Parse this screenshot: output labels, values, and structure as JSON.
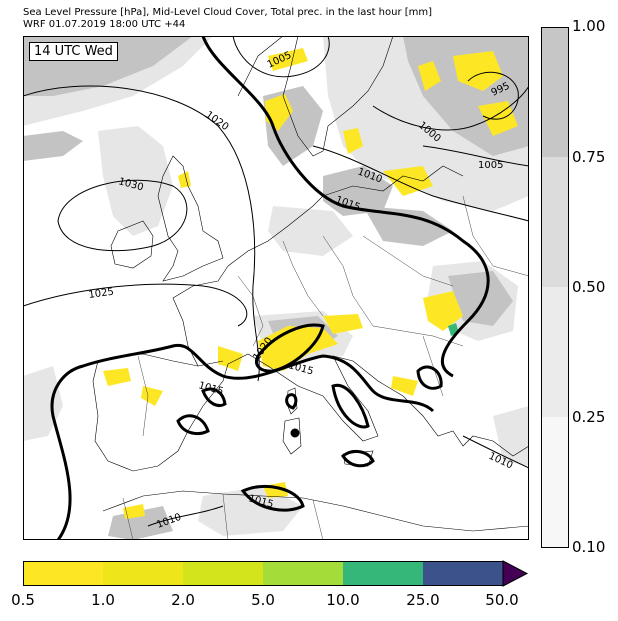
{
  "header": {
    "title": "Sea Level Pressure [hPa], Mid-Level Cloud Cover, Total prec. in the last hour [mm]",
    "run": "WRF 01.07.2019 18:00 UTC +44"
  },
  "time_label": "14 UTC Wed",
  "isobars": [
    "1005",
    "995",
    "1000",
    "1020",
    "1005",
    "1030",
    "1010",
    "1015",
    "1025",
    "1020",
    "1015",
    "1015",
    "1015",
    "1010",
    "1010"
  ],
  "cloud_colorbar": {
    "ticks": [
      "1.00",
      "0.75",
      "0.50",
      "0.25",
      "0.10"
    ],
    "colors": [
      "#c6c6c6",
      "#dcdcdc",
      "#ebebeb",
      "#f7f7f7"
    ]
  },
  "precip_colorbar": {
    "ticks": [
      "0.5",
      "1.0",
      "2.0",
      "5.0",
      "10.0",
      "25.0",
      "50.0"
    ],
    "colors": [
      "#fde725",
      "#eee51b",
      "#d3e31c",
      "#a4dc3a",
      "#35b779",
      "#3b528b",
      "#440154"
    ]
  },
  "colors": {
    "sea": "#ffffff",
    "cloud_light": "#e6e6e6",
    "cloud_dark": "#c3c3c3",
    "coast": "#000000",
    "border": "#444444"
  }
}
